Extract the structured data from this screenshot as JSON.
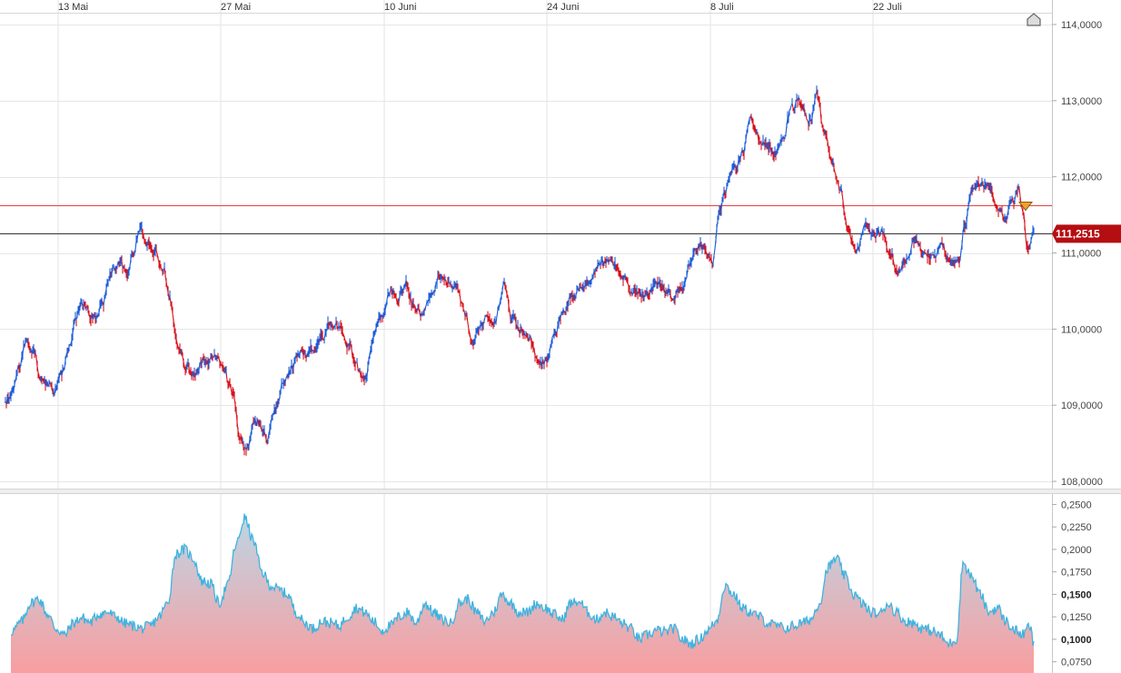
{
  "chart_data": [
    {
      "type": "line",
      "panel": "price",
      "x_ticks": [
        "13 Mai",
        "27 Mai",
        "10 Juni",
        "24 Juni",
        "8 Juli",
        "22 Juli"
      ],
      "y_ticks": [
        "114,0000",
        "113,0000",
        "112,0000",
        "111,0000",
        "110,0000",
        "109,0000",
        "108,0000"
      ],
      "ylim": [
        108.0,
        114.0
      ],
      "last_price": 111.2515,
      "last_price_label": "111,2515",
      "reference_level": 111.62,
      "up_color": "#1a5cd8",
      "down_color": "#d8101a",
      "reference_color": "#e0433d",
      "anchors": [
        [
          0.0,
          109.0
        ],
        [
          0.6,
          109.1
        ],
        [
          1.4,
          109.5
        ],
        [
          2.0,
          109.8
        ],
        [
          2.6,
          109.75
        ],
        [
          3.4,
          109.4
        ],
        [
          4.0,
          109.3
        ],
        [
          4.6,
          109.2
        ],
        [
          5.3,
          109.4
        ],
        [
          6.0,
          109.75
        ],
        [
          6.6,
          110.1
        ],
        [
          7.2,
          110.35
        ],
        [
          8.0,
          110.2
        ],
        [
          8.6,
          110.15
        ],
        [
          9.2,
          110.35
        ],
        [
          9.8,
          110.7
        ],
        [
          10.6,
          110.9
        ],
        [
          11.4,
          110.75
        ],
        [
          12.0,
          111.0
        ],
        [
          12.6,
          111.3
        ],
        [
          13.2,
          111.15
        ],
        [
          14.0,
          111.0
        ],
        [
          14.8,
          110.85
        ],
        [
          15.4,
          110.4
        ],
        [
          16.2,
          109.8
        ],
        [
          17.0,
          109.5
        ],
        [
          17.6,
          109.4
        ],
        [
          18.4,
          109.6
        ],
        [
          19.0,
          109.55
        ],
        [
          19.8,
          109.7
        ],
        [
          20.4,
          109.45
        ],
        [
          21.2,
          109.2
        ],
        [
          22.0,
          108.6
        ],
        [
          22.6,
          108.4
        ],
        [
          23.4,
          108.8
        ],
        [
          24.0,
          108.7
        ],
        [
          24.6,
          108.6
        ],
        [
          25.2,
          108.9
        ],
        [
          26.0,
          109.3
        ],
        [
          26.8,
          109.5
        ],
        [
          27.4,
          109.7
        ],
        [
          28.2,
          109.65
        ],
        [
          29.0,
          109.8
        ],
        [
          29.6,
          109.9
        ],
        [
          30.4,
          110.1
        ],
        [
          31.2,
          110.0
        ],
        [
          32.0,
          109.8
        ],
        [
          32.8,
          109.5
        ],
        [
          33.6,
          109.3
        ],
        [
          34.4,
          109.9
        ],
        [
          35.2,
          110.2
        ],
        [
          36.0,
          110.5
        ],
        [
          36.6,
          110.4
        ],
        [
          37.4,
          110.6
        ],
        [
          38.2,
          110.3
        ],
        [
          39.0,
          110.2
        ],
        [
          39.8,
          110.5
        ],
        [
          40.6,
          110.7
        ],
        [
          41.4,
          110.6
        ],
        [
          42.2,
          110.5
        ],
        [
          43.0,
          110.2
        ],
        [
          43.6,
          109.8
        ],
        [
          44.2,
          110.0
        ],
        [
          45.0,
          110.2
        ],
        [
          45.8,
          110.1
        ],
        [
          46.6,
          110.6
        ],
        [
          47.4,
          110.1
        ],
        [
          48.2,
          110.0
        ],
        [
          49.0,
          109.9
        ],
        [
          49.8,
          109.5
        ],
        [
          50.6,
          109.6
        ],
        [
          51.4,
          110.0
        ],
        [
          52.0,
          110.2
        ],
        [
          52.8,
          110.4
        ],
        [
          53.6,
          110.5
        ],
        [
          54.4,
          110.6
        ],
        [
          55.2,
          110.8
        ],
        [
          56.0,
          110.9
        ],
        [
          56.8,
          110.85
        ],
        [
          57.6,
          110.7
        ],
        [
          58.4,
          110.5
        ],
        [
          59.2,
          110.4
        ],
        [
          60.0,
          110.5
        ],
        [
          60.8,
          110.55
        ],
        [
          61.6,
          110.5
        ],
        [
          62.4,
          110.45
        ],
        [
          63.2,
          110.6
        ],
        [
          64.0,
          110.9
        ],
        [
          64.8,
          111.1
        ],
        [
          65.4,
          111.0
        ],
        [
          66.0,
          110.9
        ],
        [
          66.6,
          111.5
        ],
        [
          67.2,
          111.8
        ],
        [
          68.0,
          112.1
        ],
        [
          68.8,
          112.3
        ],
        [
          69.6,
          112.7
        ],
        [
          70.4,
          112.5
        ],
        [
          71.2,
          112.4
        ],
        [
          72.0,
          112.3
        ],
        [
          72.6,
          112.5
        ],
        [
          73.4,
          112.9
        ],
        [
          74.2,
          113.0
        ],
        [
          75.0,
          112.7
        ],
        [
          75.8,
          113.05
        ],
        [
          76.4,
          112.6
        ],
        [
          77.2,
          112.2
        ],
        [
          78.0,
          111.8
        ],
        [
          78.6,
          111.3
        ],
        [
          79.4,
          111.0
        ],
        [
          80.2,
          111.4
        ],
        [
          81.0,
          111.2
        ],
        [
          81.8,
          111.3
        ],
        [
          82.6,
          111.0
        ],
        [
          83.4,
          110.8
        ],
        [
          84.2,
          110.9
        ],
        [
          85.0,
          111.15
        ],
        [
          85.8,
          111.0
        ],
        [
          86.6,
          110.95
        ],
        [
          87.4,
          111.1
        ],
        [
          88.2,
          110.95
        ],
        [
          89.0,
          110.9
        ],
        [
          89.6,
          111.4
        ],
        [
          90.2,
          111.8
        ],
        [
          91.0,
          111.95
        ],
        [
          91.8,
          111.9
        ],
        [
          92.6,
          111.55
        ],
        [
          93.4,
          111.45
        ],
        [
          94.0,
          111.7
        ],
        [
          94.6,
          111.8
        ],
        [
          95.0,
          111.55
        ],
        [
          95.4,
          111.05
        ],
        [
          96.0,
          111.25
        ]
      ]
    },
    {
      "type": "area",
      "panel": "volatility",
      "y_ticks": [
        "0,2500",
        "0,2250",
        "0,2000",
        "0,1750",
        "0,1500",
        "0,1250",
        "0,1000",
        "0,0750"
      ],
      "bold_ticks": [
        "0,1500",
        "0,1000"
      ],
      "ylim": [
        0.0625,
        0.2545
      ],
      "line_color": "#3fb3e0",
      "fill_top_color": "#bcd6e6",
      "fill_bottom_color": "#f89ea0",
      "anchors": [
        [
          0.0,
          0.095
        ],
        [
          0.8,
          0.11
        ],
        [
          1.6,
          0.12
        ],
        [
          2.4,
          0.14
        ],
        [
          3.2,
          0.145
        ],
        [
          4.0,
          0.128
        ],
        [
          4.8,
          0.112
        ],
        [
          5.6,
          0.105
        ],
        [
          6.4,
          0.118
        ],
        [
          7.2,
          0.124
        ],
        [
          8.0,
          0.119
        ],
        [
          8.8,
          0.128
        ],
        [
          9.6,
          0.13
        ],
        [
          10.4,
          0.125
        ],
        [
          11.2,
          0.118
        ],
        [
          12.0,
          0.115
        ],
        [
          12.8,
          0.112
        ],
        [
          13.6,
          0.115
        ],
        [
          14.4,
          0.125
        ],
        [
          15.2,
          0.14
        ],
        [
          16.0,
          0.195
        ],
        [
          16.8,
          0.2
        ],
        [
          17.6,
          0.19
        ],
        [
          18.4,
          0.165
        ],
        [
          19.2,
          0.162
        ],
        [
          20.0,
          0.14
        ],
        [
          20.8,
          0.16
        ],
        [
          21.6,
          0.205
        ],
        [
          22.4,
          0.235
        ],
        [
          23.2,
          0.21
        ],
        [
          24.0,
          0.175
        ],
        [
          24.8,
          0.16
        ],
        [
          25.6,
          0.155
        ],
        [
          26.4,
          0.15
        ],
        [
          27.2,
          0.13
        ],
        [
          28.0,
          0.118
        ],
        [
          28.8,
          0.112
        ],
        [
          29.6,
          0.12
        ],
        [
          30.4,
          0.118
        ],
        [
          31.2,
          0.115
        ],
        [
          32.0,
          0.125
        ],
        [
          32.8,
          0.135
        ],
        [
          33.6,
          0.13
        ],
        [
          34.4,
          0.12
        ],
        [
          35.2,
          0.11
        ],
        [
          36.0,
          0.115
        ],
        [
          36.8,
          0.125
        ],
        [
          37.6,
          0.13
        ],
        [
          38.4,
          0.118
        ],
        [
          39.2,
          0.14
        ],
        [
          40.0,
          0.13
        ],
        [
          40.8,
          0.122
        ],
        [
          41.6,
          0.118
        ],
        [
          42.4,
          0.14
        ],
        [
          43.2,
          0.145
        ],
        [
          44.0,
          0.13
        ],
        [
          44.8,
          0.12
        ],
        [
          45.6,
          0.13
        ],
        [
          46.4,
          0.15
        ],
        [
          47.2,
          0.14
        ],
        [
          48.0,
          0.13
        ],
        [
          48.8,
          0.13
        ],
        [
          49.6,
          0.14
        ],
        [
          50.4,
          0.135
        ],
        [
          51.2,
          0.128
        ],
        [
          52.0,
          0.122
        ],
        [
          52.8,
          0.14
        ],
        [
          53.6,
          0.142
        ],
        [
          54.4,
          0.13
        ],
        [
          55.2,
          0.122
        ],
        [
          56.0,
          0.13
        ],
        [
          56.8,
          0.125
        ],
        [
          57.6,
          0.118
        ],
        [
          58.4,
          0.112
        ],
        [
          59.2,
          0.1
        ],
        [
          60.0,
          0.105
        ],
        [
          60.8,
          0.11
        ],
        [
          61.6,
          0.108
        ],
        [
          62.4,
          0.112
        ],
        [
          63.2,
          0.1
        ],
        [
          64.0,
          0.095
        ],
        [
          64.8,
          0.1
        ],
        [
          65.6,
          0.11
        ],
        [
          66.4,
          0.12
        ],
        [
          67.2,
          0.16
        ],
        [
          68.0,
          0.15
        ],
        [
          68.8,
          0.135
        ],
        [
          69.6,
          0.13
        ],
        [
          70.4,
          0.125
        ],
        [
          71.2,
          0.118
        ],
        [
          72.0,
          0.115
        ],
        [
          72.8,
          0.112
        ],
        [
          73.6,
          0.115
        ],
        [
          74.4,
          0.118
        ],
        [
          75.2,
          0.122
        ],
        [
          76.0,
          0.14
        ],
        [
          76.8,
          0.18
        ],
        [
          77.6,
          0.19
        ],
        [
          78.4,
          0.17
        ],
        [
          79.2,
          0.15
        ],
        [
          80.0,
          0.14
        ],
        [
          80.8,
          0.13
        ],
        [
          81.6,
          0.128
        ],
        [
          82.4,
          0.14
        ],
        [
          83.2,
          0.13
        ],
        [
          84.0,
          0.12
        ],
        [
          84.8,
          0.118
        ],
        [
          85.6,
          0.112
        ],
        [
          86.4,
          0.11
        ],
        [
          87.2,
          0.105
        ],
        [
          88.0,
          0.095
        ],
        [
          88.8,
          0.1
        ],
        [
          89.4,
          0.185
        ],
        [
          90.2,
          0.17
        ],
        [
          91.0,
          0.15
        ],
        [
          91.8,
          0.13
        ],
        [
          92.6,
          0.135
        ],
        [
          93.4,
          0.12
        ],
        [
          94.2,
          0.11
        ],
        [
          95.0,
          0.105
        ],
        [
          95.6,
          0.115
        ],
        [
          96.0,
          0.095
        ]
      ]
    }
  ]
}
